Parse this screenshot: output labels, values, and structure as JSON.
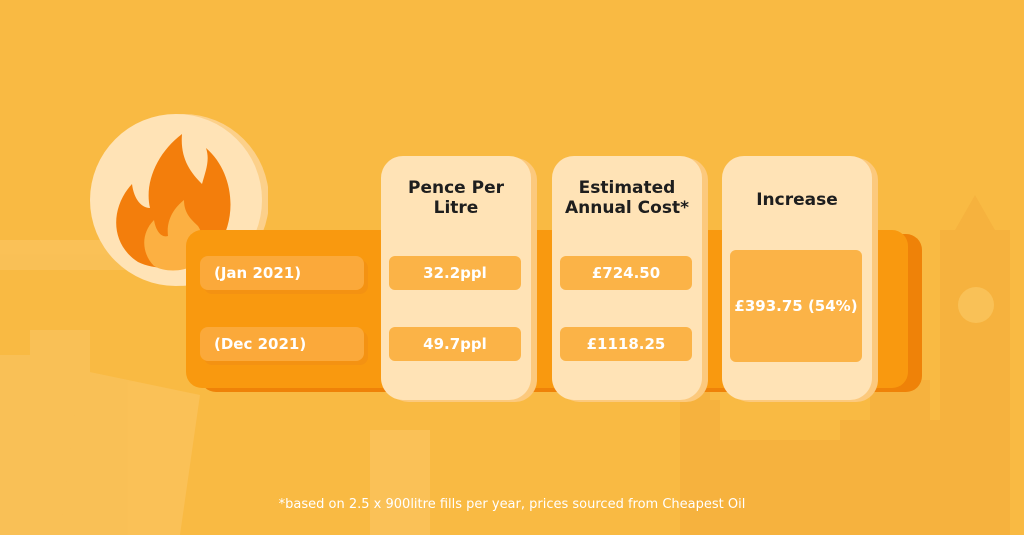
{
  "colors": {
    "background": "#F9BA43",
    "band": "#F9990F",
    "card": "#FFE3B6",
    "cell": "#FBB347",
    "flame_outer": "#F37E0C",
    "flame_inner": "#FCB042",
    "circle": "#FFE3B6"
  },
  "icon": "flame-icon",
  "rows": [
    {
      "label": "(Jan 2021)"
    },
    {
      "label": "(Dec 2021)"
    }
  ],
  "columns": [
    {
      "header_line1": "Pence Per",
      "header_line2": "Litre",
      "values": [
        "32.2ppl",
        "49.7ppl"
      ]
    },
    {
      "header_line1": "Estimated",
      "header_line2": "Annual Cost*",
      "values": [
        "£724.50",
        "£1118.25"
      ]
    },
    {
      "header_line1": "Increase",
      "value": "£393.75 (54%)"
    }
  ],
  "footnote": "*based on 2.5 x 900litre fills per year, prices sourced from Cheapest Oil"
}
